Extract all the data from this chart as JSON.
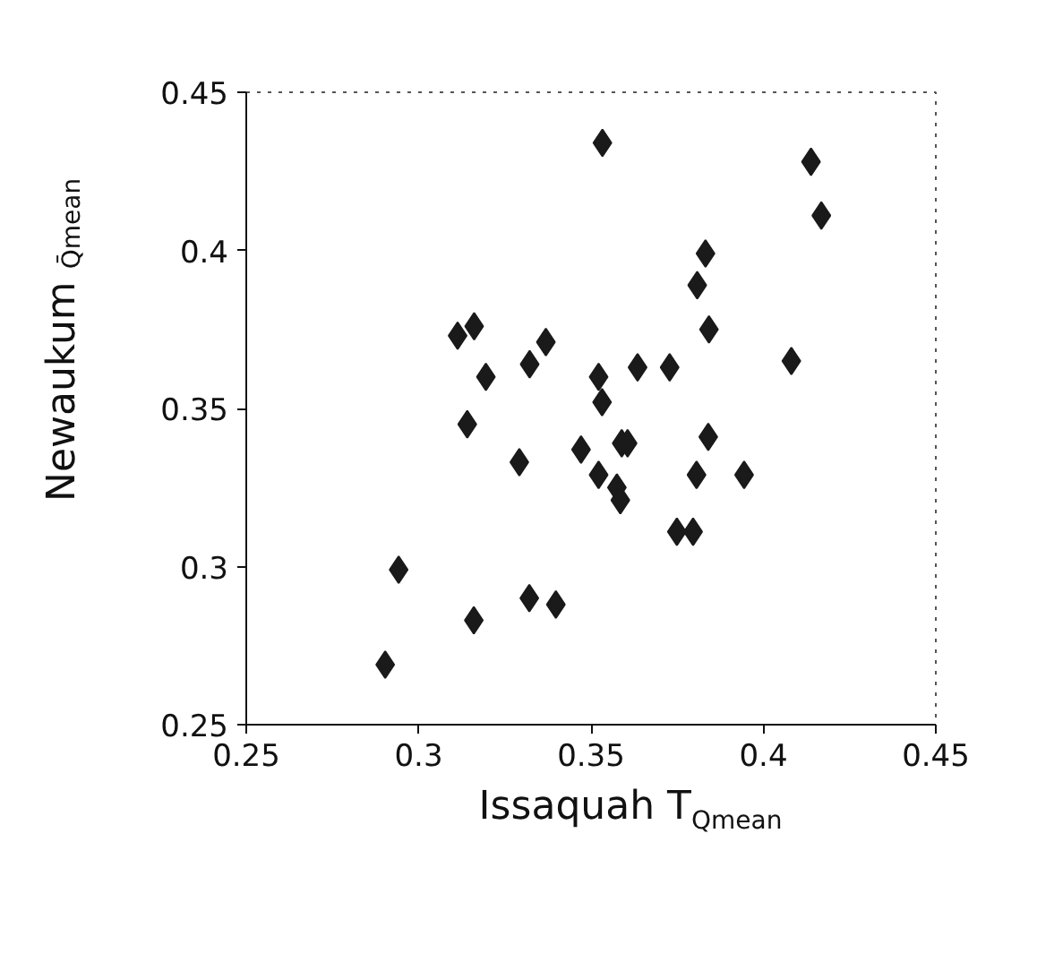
{
  "chart_data": {
    "type": "scatter",
    "xlabel": "Issaquah T$_{Qmean}$",
    "ylabel": "Newaukum $_{Q̄mean}$",
    "x": [
      0.3533,
      0.4138,
      0.4168,
      0.3832,
      0.3808,
      0.3842,
      0.4081,
      0.3635,
      0.3728,
      0.3522,
      0.3532,
      0.3589,
      0.3606,
      0.384,
      0.3471,
      0.3522,
      0.3575,
      0.3585,
      0.3806,
      0.3944,
      0.3749,
      0.3796,
      0.3113,
      0.3161,
      0.3369,
      0.3322,
      0.3195,
      0.3141,
      0.3292,
      0.2942,
      0.3321,
      0.3398,
      0.316,
      0.2903
    ],
    "series": [
      {
        "color": "#1a1a1a",
        "values": [
          0.434,
          0.428,
          0.411,
          0.399,
          0.389,
          0.375,
          0.365,
          0.363,
          0.363,
          0.36,
          0.352,
          0.339,
          0.339,
          0.341,
          0.337,
          0.329,
          0.325,
          0.321,
          0.329,
          0.329,
          0.311,
          0.311,
          0.373,
          0.376,
          0.371,
          0.364,
          0.36,
          0.345,
          0.333,
          0.299,
          0.29,
          0.288,
          0.283,
          0.269
        ]
      }
    ],
    "marker": "diamond",
    "grid": false,
    "xlim": [
      0.25,
      0.45
    ],
    "ylim": [
      0.25,
      0.45
    ],
    "xticks": [
      0.25,
      0.3,
      0.35,
      0.4,
      0.45
    ],
    "yticks": [
      0.25,
      0.3,
      0.35,
      0.4,
      0.45
    ]
  }
}
